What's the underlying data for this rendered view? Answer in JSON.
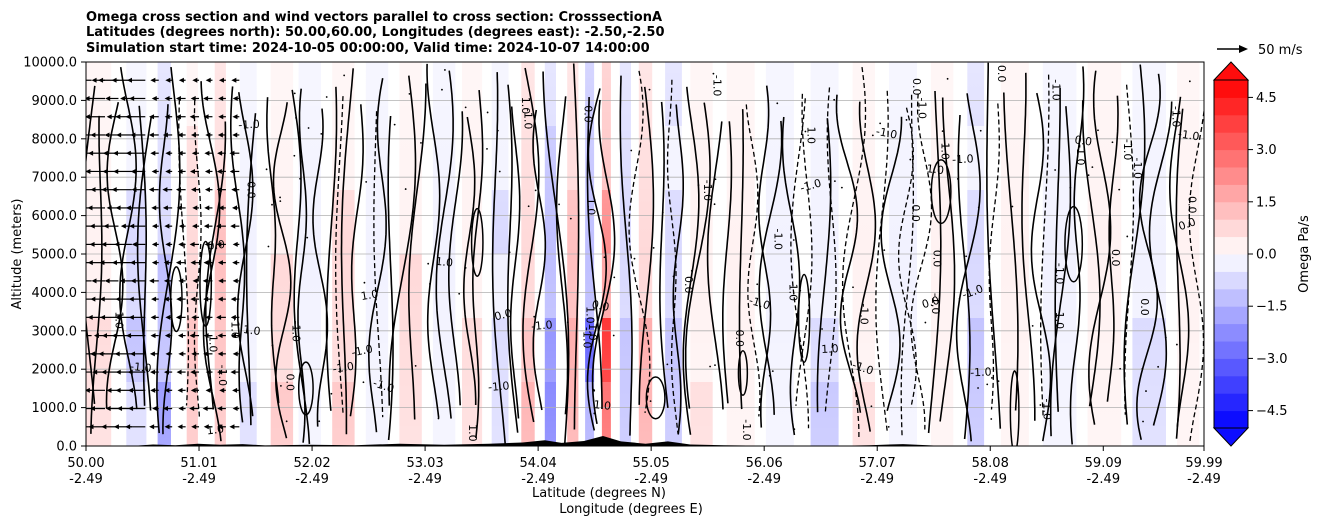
{
  "chart_data": {
    "type": "heatmap",
    "title_lines": [
      "Omega cross section and wind vectors parallel to cross section: CrosssectionA",
      "Latitudes (degrees north): 50.00,60.00, Longitudes (degrees east): -2.50,-2.50",
      "Simulation start time: 2024-10-05 00:00:00, Valid time: 2024-10-07 14:00:00"
    ],
    "ylabel": "Altitude (meters)",
    "xlabel_lat": "Latitude (degrees N)",
    "xlabel_lon": "Longitude (degrees E)",
    "ylim": [
      0,
      10000
    ],
    "xlim": [
      50.0,
      59.99
    ],
    "y_ticks": [
      0,
      1000,
      2000,
      3000,
      4000,
      5000,
      6000,
      7000,
      8000,
      9000,
      10000
    ],
    "y_tick_labels": [
      "0.0",
      "1000.0",
      "2000.0",
      "3000.0",
      "4000.0",
      "5000.0",
      "6000.0",
      "7000.0",
      "8000.0",
      "9000.0",
      "10000.0"
    ],
    "x_ticks": [
      {
        "lat": 50.0,
        "lat_label": "50.00",
        "lon_label": "-2.49"
      },
      {
        "lat": 51.01,
        "lat_label": "51.01",
        "lon_label": "-2.49"
      },
      {
        "lat": 52.02,
        "lat_label": "52.02",
        "lon_label": "-2.49"
      },
      {
        "lat": 53.03,
        "lat_label": "53.03",
        "lon_label": "-2.49"
      },
      {
        "lat": 54.04,
        "lat_label": "54.04",
        "lon_label": "-2.49"
      },
      {
        "lat": 55.05,
        "lat_label": "55.05",
        "lon_label": "-2.49"
      },
      {
        "lat": 56.06,
        "lat_label": "56.06",
        "lon_label": "-2.49"
      },
      {
        "lat": 57.07,
        "lat_label": "57.07",
        "lon_label": "-2.49"
      },
      {
        "lat": 58.08,
        "lat_label": "58.08",
        "lon_label": "-2.49"
      },
      {
        "lat": 59.09,
        "lat_label": "59.09",
        "lon_label": "-2.49"
      },
      {
        "lat": 59.99,
        "lat_label": "59.99",
        "lon_label": "-2.49"
      }
    ],
    "colorbar": {
      "label": "Omega Pa/s",
      "range": [
        -5.0,
        5.0
      ],
      "levels": 20,
      "ticks": [
        -4.5,
        -3.0,
        -1.5,
        0.0,
        1.5,
        3.0,
        4.5
      ],
      "tick_labels": [
        "−4.5",
        "−3.0",
        "−1.5",
        "0.0",
        "1.5",
        "3.0",
        "4.5"
      ],
      "extend": "both",
      "cmap": "bwr"
    },
    "quiver_key": {
      "label": "50 m/s",
      "value": 50
    },
    "contour_labels": [
      "0.0",
      "1.0",
      "-1.0",
      "-1.0"
    ],
    "terrain": [
      {
        "lat": 50.4,
        "h": 0
      },
      {
        "lat": 50.6,
        "h": 40
      },
      {
        "lat": 50.8,
        "h": 20
      },
      {
        "lat": 51.0,
        "h": 60
      },
      {
        "lat": 51.2,
        "h": 30
      },
      {
        "lat": 51.4,
        "h": 50
      },
      {
        "lat": 51.6,
        "h": 15
      },
      {
        "lat": 52.0,
        "h": 30
      },
      {
        "lat": 52.4,
        "h": 20
      },
      {
        "lat": 52.8,
        "h": 60
      },
      {
        "lat": 53.2,
        "h": 30
      },
      {
        "lat": 53.6,
        "h": 60
      },
      {
        "lat": 53.9,
        "h": 90
      },
      {
        "lat": 54.1,
        "h": 150
      },
      {
        "lat": 54.25,
        "h": 80
      },
      {
        "lat": 54.45,
        "h": 130
      },
      {
        "lat": 54.62,
        "h": 260
      },
      {
        "lat": 54.78,
        "h": 120
      },
      {
        "lat": 55.0,
        "h": 60
      },
      {
        "lat": 55.2,
        "h": 120
      },
      {
        "lat": 55.4,
        "h": 40
      },
      {
        "lat": 55.7,
        "h": 20
      },
      {
        "lat": 56.0,
        "h": 10
      },
      {
        "lat": 56.6,
        "h": 0
      },
      {
        "lat": 57.0,
        "h": 20
      },
      {
        "lat": 57.3,
        "h": 50
      },
      {
        "lat": 57.6,
        "h": 10
      },
      {
        "lat": 57.8,
        "h": 0
      }
    ],
    "omega_columns": [
      {
        "lat": 50.05,
        "w": 0.35,
        "v": 0.6
      },
      {
        "lat": 50.45,
        "w": 0.18,
        "v": -0.9
      },
      {
        "lat": 50.7,
        "w": 0.12,
        "v": -1.8
      },
      {
        "lat": 50.95,
        "w": 0.1,
        "v": 1.2
      },
      {
        "lat": 51.2,
        "w": 0.1,
        "v": 1.6
      },
      {
        "lat": 51.45,
        "w": 0.15,
        "v": -0.6
      },
      {
        "lat": 51.75,
        "w": 0.2,
        "v": 0.8
      },
      {
        "lat": 52.0,
        "w": 0.2,
        "v": -0.4
      },
      {
        "lat": 52.3,
        "w": 0.2,
        "v": 1.0
      },
      {
        "lat": 52.6,
        "w": 0.2,
        "v": -0.5
      },
      {
        "lat": 52.9,
        "w": 0.2,
        "v": 0.9
      },
      {
        "lat": 53.2,
        "w": 0.2,
        "v": -0.3
      },
      {
        "lat": 53.45,
        "w": 0.18,
        "v": 0.7
      },
      {
        "lat": 53.7,
        "w": 0.15,
        "v": -0.8
      },
      {
        "lat": 53.95,
        "w": 0.12,
        "v": 1.4
      },
      {
        "lat": 54.15,
        "w": 0.1,
        "v": -2.2
      },
      {
        "lat": 54.35,
        "w": 0.1,
        "v": 1.9
      },
      {
        "lat": 54.5,
        "w": 0.08,
        "v": -2.6
      },
      {
        "lat": 54.65,
        "w": 0.08,
        "v": 3.6
      },
      {
        "lat": 54.82,
        "w": 0.1,
        "v": -1.5
      },
      {
        "lat": 55.0,
        "w": 0.12,
        "v": 1.5
      },
      {
        "lat": 55.25,
        "w": 0.15,
        "v": -1.0
      },
      {
        "lat": 55.5,
        "w": 0.2,
        "v": 0.5
      },
      {
        "lat": 55.85,
        "w": 0.25,
        "v": 0.2
      },
      {
        "lat": 56.2,
        "w": 0.25,
        "v": -0.3
      },
      {
        "lat": 56.6,
        "w": 0.25,
        "v": -0.9
      },
      {
        "lat": 56.95,
        "w": 0.2,
        "v": 0.6
      },
      {
        "lat": 57.3,
        "w": 0.25,
        "v": -0.4
      },
      {
        "lat": 57.65,
        "w": 0.2,
        "v": 0.3
      },
      {
        "lat": 57.95,
        "w": 0.15,
        "v": -1.1
      },
      {
        "lat": 58.3,
        "w": 0.25,
        "v": 0.2
      },
      {
        "lat": 58.7,
        "w": 0.3,
        "v": -0.3
      },
      {
        "lat": 59.1,
        "w": 0.3,
        "v": 0.2
      },
      {
        "lat": 59.5,
        "w": 0.3,
        "v": -0.6
      },
      {
        "lat": 59.85,
        "w": 0.2,
        "v": 0.4
      }
    ]
  }
}
